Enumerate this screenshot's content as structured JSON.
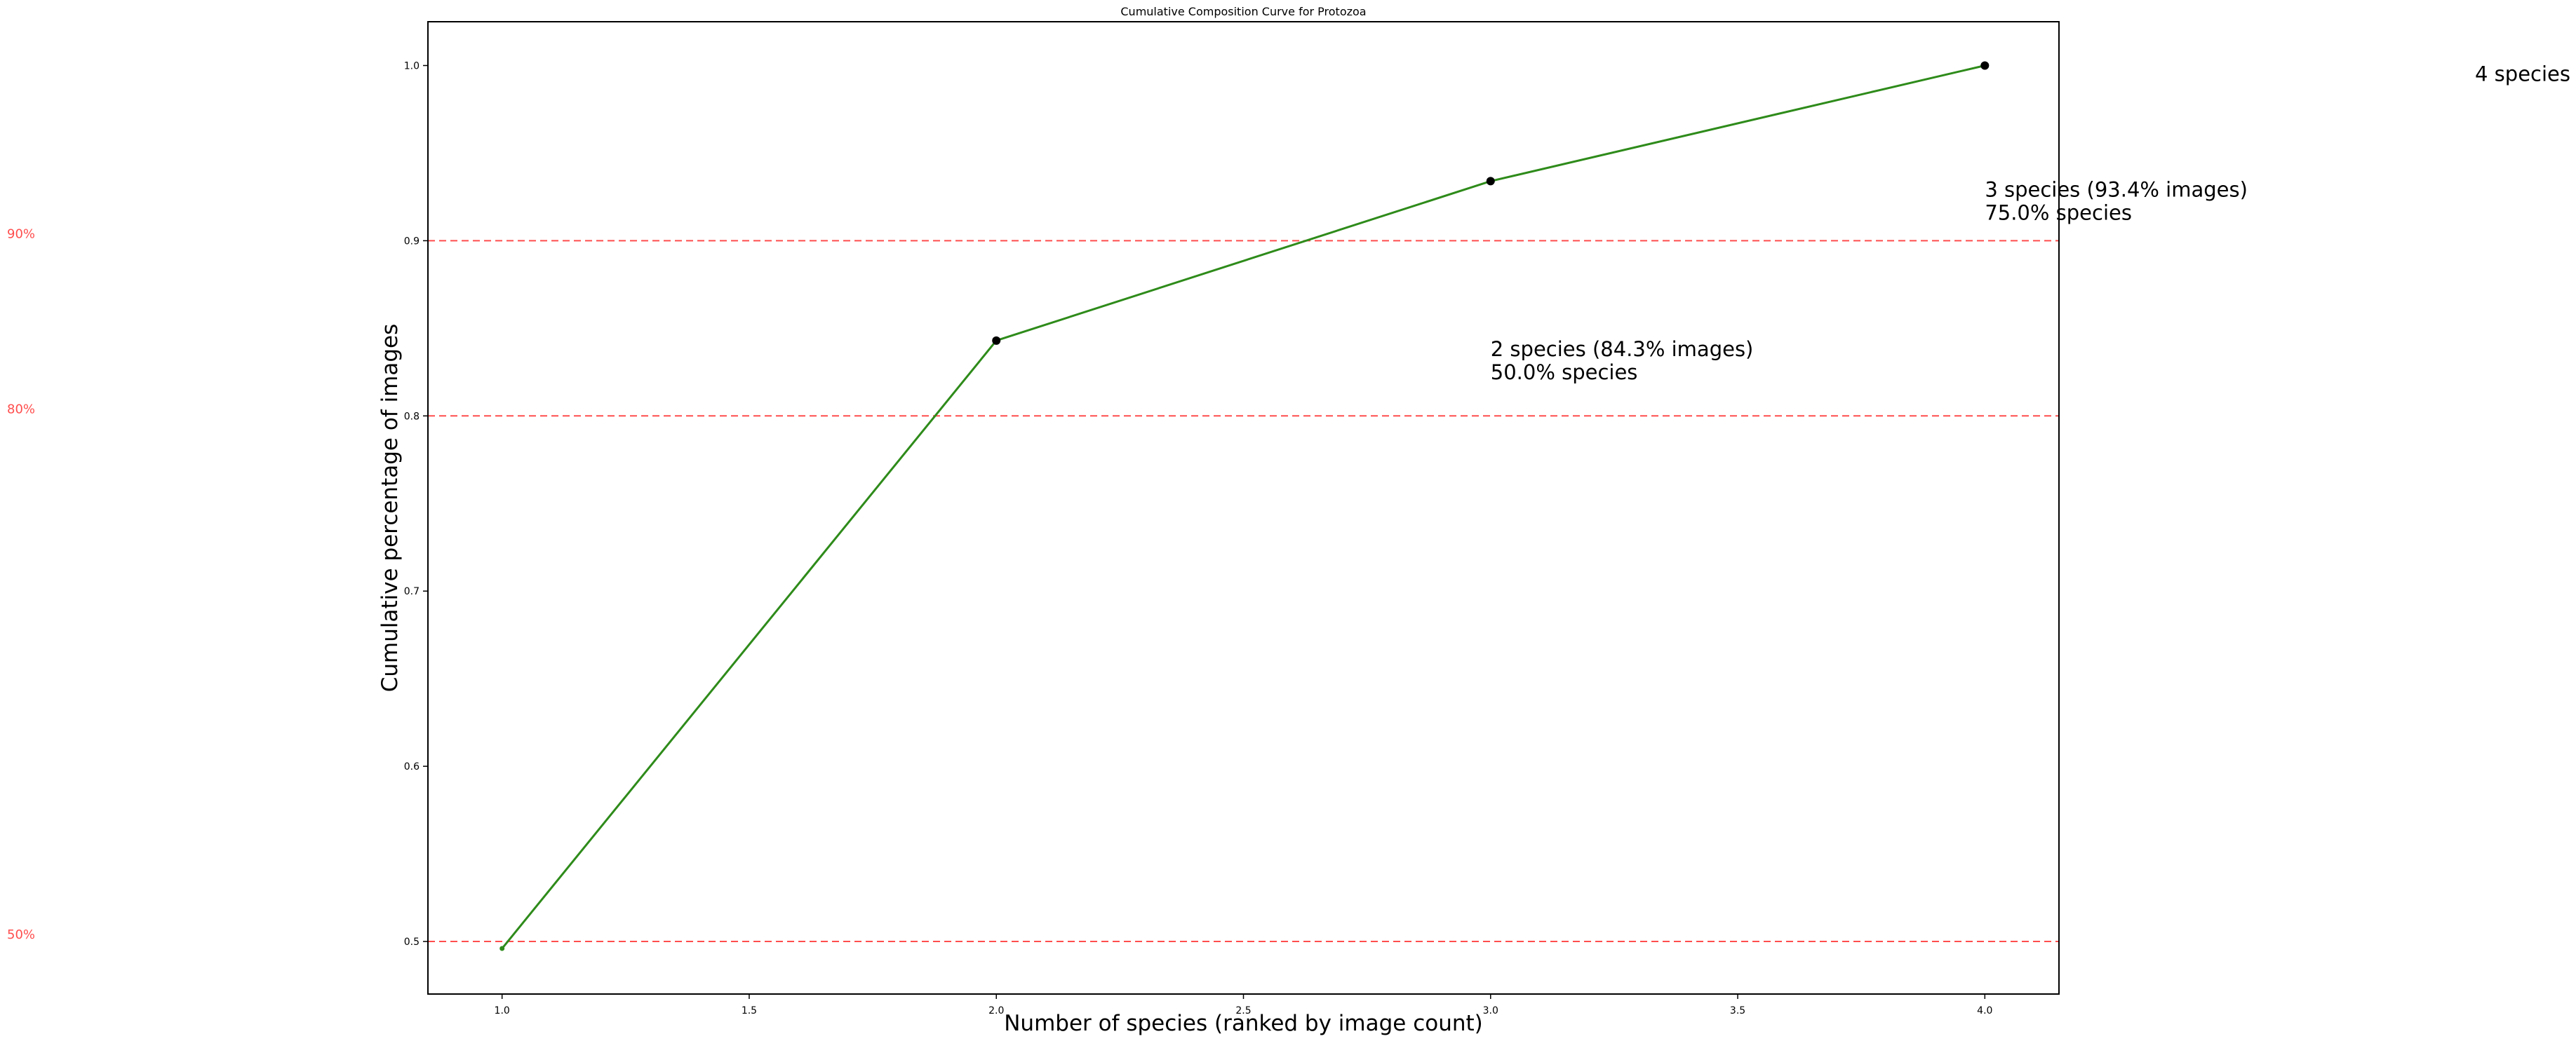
{
  "chart_data": {
    "type": "line",
    "title": "Cumulative Composition Curve for Protozoa",
    "xlabel": "Number of species (ranked by image count)",
    "ylabel": "Cumulative percentage of images",
    "xlim": [
      0.85,
      4.15
    ],
    "ylim": [
      0.47,
      1.025
    ],
    "grid": false,
    "legend": "none",
    "x_ticks": [
      {
        "value": 1.0,
        "label": "1.0"
      },
      {
        "value": 1.5,
        "label": "1.5"
      },
      {
        "value": 2.0,
        "label": "2.0"
      },
      {
        "value": 2.5,
        "label": "2.5"
      },
      {
        "value": 3.0,
        "label": "3.0"
      },
      {
        "value": 3.5,
        "label": "3.5"
      },
      {
        "value": 4.0,
        "label": "4.0"
      }
    ],
    "y_ticks": [
      {
        "value": 0.5,
        "label": "0.5"
      },
      {
        "value": 0.6,
        "label": "0.6"
      },
      {
        "value": 0.7,
        "label": "0.7"
      },
      {
        "value": 0.8,
        "label": "0.8"
      },
      {
        "value": 0.9,
        "label": "0.9"
      },
      {
        "value": 1.0,
        "label": "1.0"
      }
    ],
    "series": [
      {
        "color": "#2e8b1a",
        "x": [
          1,
          2,
          3,
          4
        ],
        "y": [
          0.496,
          0.843,
          0.934,
          1.0
        ],
        "marker_points": [
          {
            "x": 2,
            "y": 0.843
          },
          {
            "x": 3,
            "y": 0.934
          },
          {
            "x": 4,
            "y": 1.0
          }
        ]
      }
    ],
    "reference_lines": [
      {
        "y": 0.9,
        "label": "90%",
        "color": "#ff4d4d"
      },
      {
        "y": 0.8,
        "label": "80%",
        "color": "#ff4d4d"
      },
      {
        "y": 0.5,
        "label": "50%",
        "color": "#ff4d4d"
      }
    ],
    "annotations": [
      {
        "x": 3,
        "y": 0.843,
        "lines": [
          "2 species (84.3% images)",
          "50.0% species"
        ]
      },
      {
        "x": 4,
        "y": 0.934,
        "lines": [
          "3 species (93.4% images)",
          "75.0% species"
        ]
      },
      {
        "x": 5,
        "y": 1.0,
        "lines": [
          "4 species"
        ]
      }
    ]
  }
}
